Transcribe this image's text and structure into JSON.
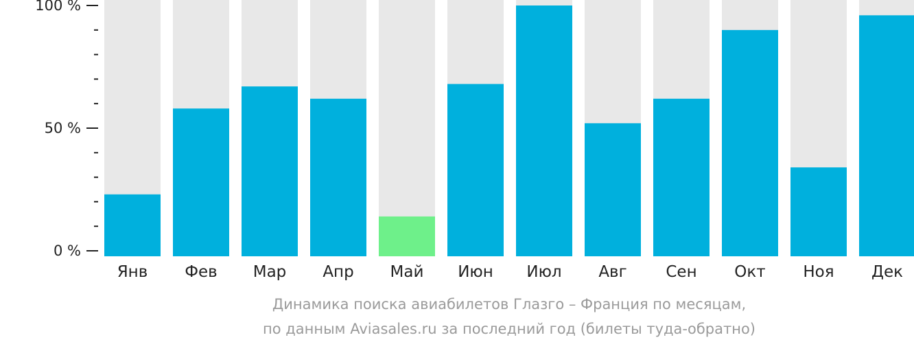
{
  "chart_data": {
    "type": "bar",
    "categories": [
      "Янв",
      "Фев",
      "Мар",
      "Апр",
      "Май",
      "Июн",
      "Июл",
      "Авг",
      "Сен",
      "Окт",
      "Ноя",
      "Дек"
    ],
    "values": [
      23,
      58,
      67,
      62,
      14,
      68,
      100,
      52,
      62,
      90,
      34,
      96
    ],
    "ylim": [
      0,
      100
    ],
    "yticks": [
      "0 %",
      "50 %",
      "100 %"
    ],
    "highlight_index": 4,
    "title_lines": [
      "Динамика поиска авиабилетов Глазго – Франция по месяцам,",
      "по данным Aviasales.ru за последний год (билеты туда-обратно)"
    ]
  },
  "colors": {
    "bar": "#00b0dd",
    "highlight": "#6ef08a",
    "background_bar": "#e8e8e8",
    "axis": "#222222",
    "caption": "#9a9a9a"
  }
}
